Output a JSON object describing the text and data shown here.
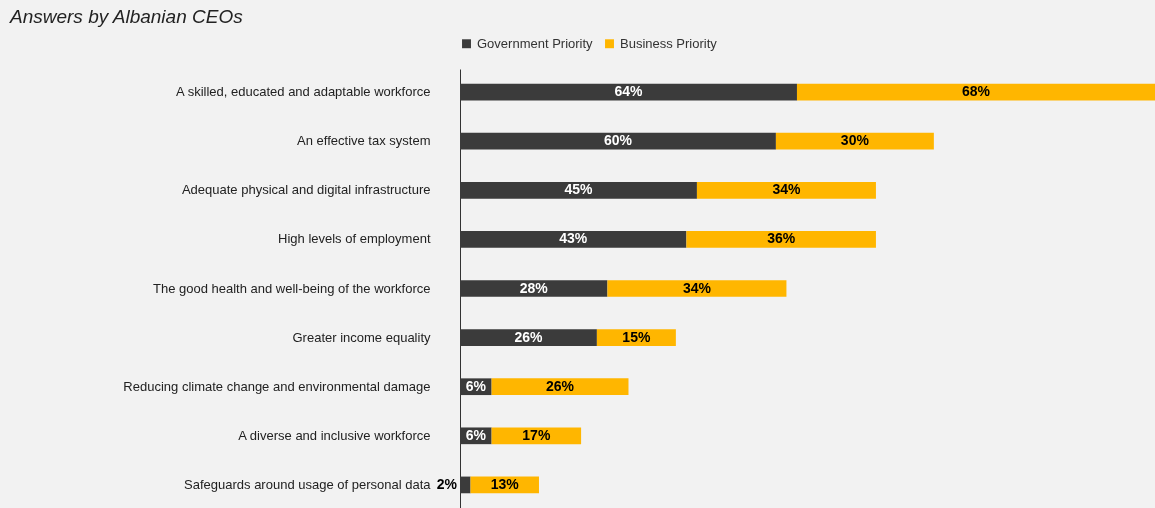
{
  "chart_data": {
    "type": "bar",
    "orientation": "horizontal",
    "stacked": true,
    "title": "Answers by Albanian CEOs",
    "categories": [
      "A skilled, educated and adaptable workforce",
      "An effective tax system",
      "Adequate physical and digital infrastructure",
      "High levels of employment",
      "The good health and well-being of the workforce",
      "Greater income equality",
      "Reducing climate change and environmental damage",
      "A diverse and inclusive workforce",
      "Safeguards around usage of personal data"
    ],
    "series": [
      {
        "name": "Government Priority",
        "color": "#3b3b3b",
        "values": [
          64,
          60,
          45,
          43,
          28,
          26,
          6,
          6,
          2
        ],
        "value_labels": [
          "64%",
          "60%",
          "45%",
          "43%",
          "28%",
          "26%",
          "6%",
          "6%",
          "2%"
        ]
      },
      {
        "name": "Business Priority",
        "color": "#ffb600",
        "values": [
          68,
          30,
          34,
          36,
          34,
          15,
          26,
          17,
          13
        ],
        "value_labels": [
          "68%",
          "30%",
          "34%",
          "36%",
          "34%",
          "15%",
          "26%",
          "17%",
          "13%"
        ]
      }
    ],
    "legend": "top",
    "grid": false
  }
}
